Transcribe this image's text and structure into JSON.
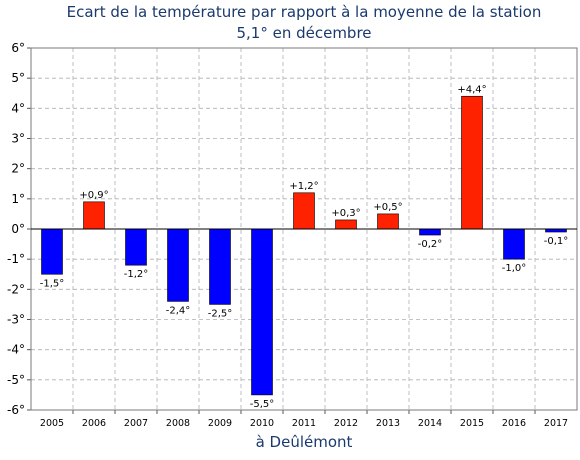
{
  "chart_data": {
    "type": "bar",
    "title": "Ecart de la température par rapport à la moyenne de la station",
    "subtitle": "5,1° en décembre",
    "xlabel": "à Deûlémont",
    "ylabel": "",
    "ylim": [
      -6,
      6
    ],
    "yticks": [
      6,
      5,
      4,
      3,
      2,
      1,
      0,
      -1,
      -2,
      -3,
      -4,
      -5,
      -6
    ],
    "ytick_labels": [
      "6°",
      "5°",
      "4°",
      "3°",
      "2°",
      "1°",
      "0°",
      "-1°",
      "-2°",
      "-3°",
      "-4°",
      "-5°",
      "-6°"
    ],
    "categories": [
      "2005",
      "2006",
      "2007",
      "2008",
      "2009",
      "2010",
      "2011",
      "2012",
      "2013",
      "2014",
      "2015",
      "2016",
      "2017"
    ],
    "values": [
      -1.5,
      0.9,
      -1.2,
      -2.4,
      -2.5,
      -5.5,
      1.2,
      0.3,
      0.5,
      -0.2,
      4.4,
      -1.0,
      -0.1
    ],
    "data_labels": [
      "-1,5°",
      "+0,9°",
      "-1,2°",
      "-2,4°",
      "-2,5°",
      "-5,5°",
      "+1,2°",
      "+0,3°",
      "+0,5°",
      "-0,2°",
      "+4,4°",
      "-1,0°",
      "-0,1°"
    ],
    "grid": true,
    "colors": {
      "positive": "#ff2200",
      "negative": "#0000ff",
      "title": "#1a3a6e",
      "grid": "#b0b0b0"
    }
  }
}
